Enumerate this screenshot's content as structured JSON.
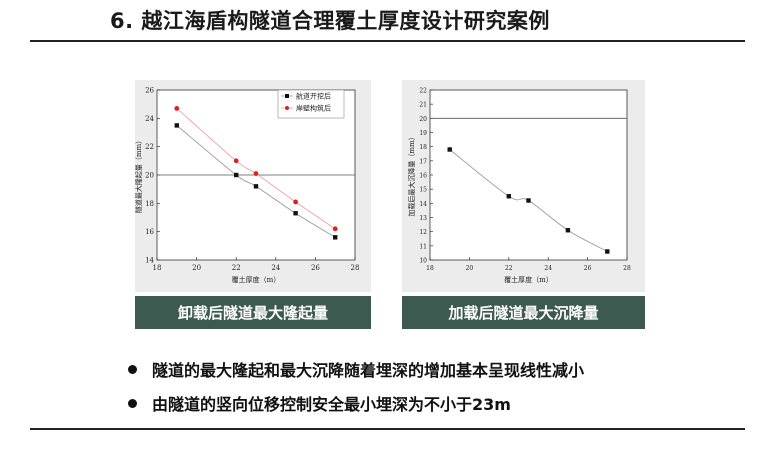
{
  "slide": {
    "title": "6. 越江海盾构隧道合理覆土厚度设计研究案例",
    "captions": [
      "卸载后隧道最大隆起量",
      "加载后隧道最大沉降量"
    ],
    "bullets": [
      "隧道的最大隆起和最大沉降随着埋深的增加基本呈现线性减小",
      "由隧道的竖向位移控制安全最小埋深为不小于23m"
    ]
  },
  "chart_data": [
    {
      "type": "line",
      "xlabel": "覆土厚度（m）",
      "ylabel": "隧道最大隆起量（mm）",
      "xlim": [
        18,
        28
      ],
      "ylim": [
        14,
        26
      ],
      "xticks": [
        18,
        20,
        22,
        24,
        26,
        28
      ],
      "yticks": [
        14,
        16,
        18,
        20,
        22,
        24,
        26
      ],
      "reference_line": 20,
      "legend_position": "top-right",
      "series": [
        {
          "name": "航道开挖后",
          "color": "#111111",
          "marker": "square",
          "x": [
            19,
            22,
            23,
            25,
            27
          ],
          "y": [
            23.5,
            20.0,
            19.2,
            17.3,
            15.6
          ]
        },
        {
          "name": "岸壁构筑后",
          "color": "#e02020",
          "marker": "circle",
          "x": [
            19,
            22,
            23,
            25,
            27
          ],
          "y": [
            24.7,
            21.0,
            20.1,
            18.1,
            16.2
          ]
        }
      ]
    },
    {
      "type": "line",
      "xlabel": "覆土厚度（m）",
      "ylabel": "加载后最大沉降量（mm）",
      "xlim": [
        18,
        28
      ],
      "ylim": [
        10,
        22
      ],
      "xticks": [
        18,
        20,
        22,
        24,
        26,
        28
      ],
      "yticks": [
        10,
        11,
        12,
        13,
        14,
        15,
        16,
        17,
        18,
        19,
        20,
        21,
        22
      ],
      "reference_line": 20,
      "series": [
        {
          "color": "#111111",
          "marker": "square",
          "x": [
            19,
            22,
            23,
            25,
            27
          ],
          "y": [
            17.8,
            14.5,
            14.2,
            12.1,
            10.6
          ]
        }
      ]
    }
  ]
}
